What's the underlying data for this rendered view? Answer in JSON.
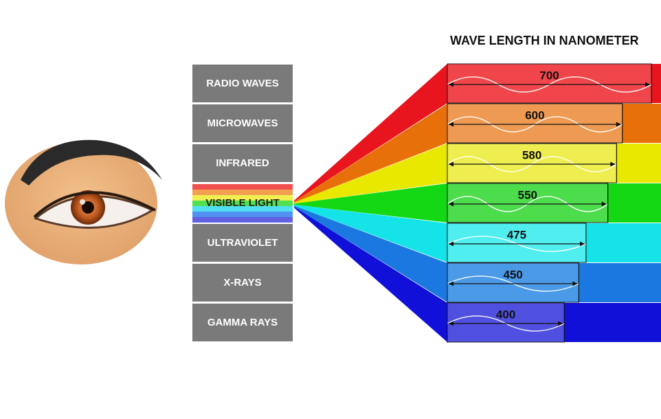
{
  "title": "WAVE LENGTH IN NANOMETER",
  "spectrum": [
    {
      "label": "RADIO WAVES"
    },
    {
      "label": "MICROWAVES"
    },
    {
      "label": "INFRARED"
    },
    {
      "label": "VISIBLE LIGHT"
    },
    {
      "label": "ULTRAVIOLET"
    },
    {
      "label": "X-RAYS"
    },
    {
      "label": "GAMMA RAYS"
    }
  ],
  "wavelengths": [
    {
      "value": 700,
      "color": "#e8141e",
      "light_color": "#f0464b"
    },
    {
      "value": 600,
      "color": "#e8700a",
      "light_color": "#ee9a52"
    },
    {
      "value": 580,
      "color": "#e8e800",
      "light_color": "#eeee50"
    },
    {
      "value": 550,
      "color": "#14d814",
      "light_color": "#4cdc4c"
    },
    {
      "value": 475,
      "color": "#14e4e8",
      "light_color": "#50eeee"
    },
    {
      "value": 450,
      "color": "#1a78e0",
      "light_color": "#4a9ae8"
    },
    {
      "value": 400,
      "color": "#1010d8",
      "light_color": "#5050e0"
    }
  ]
}
